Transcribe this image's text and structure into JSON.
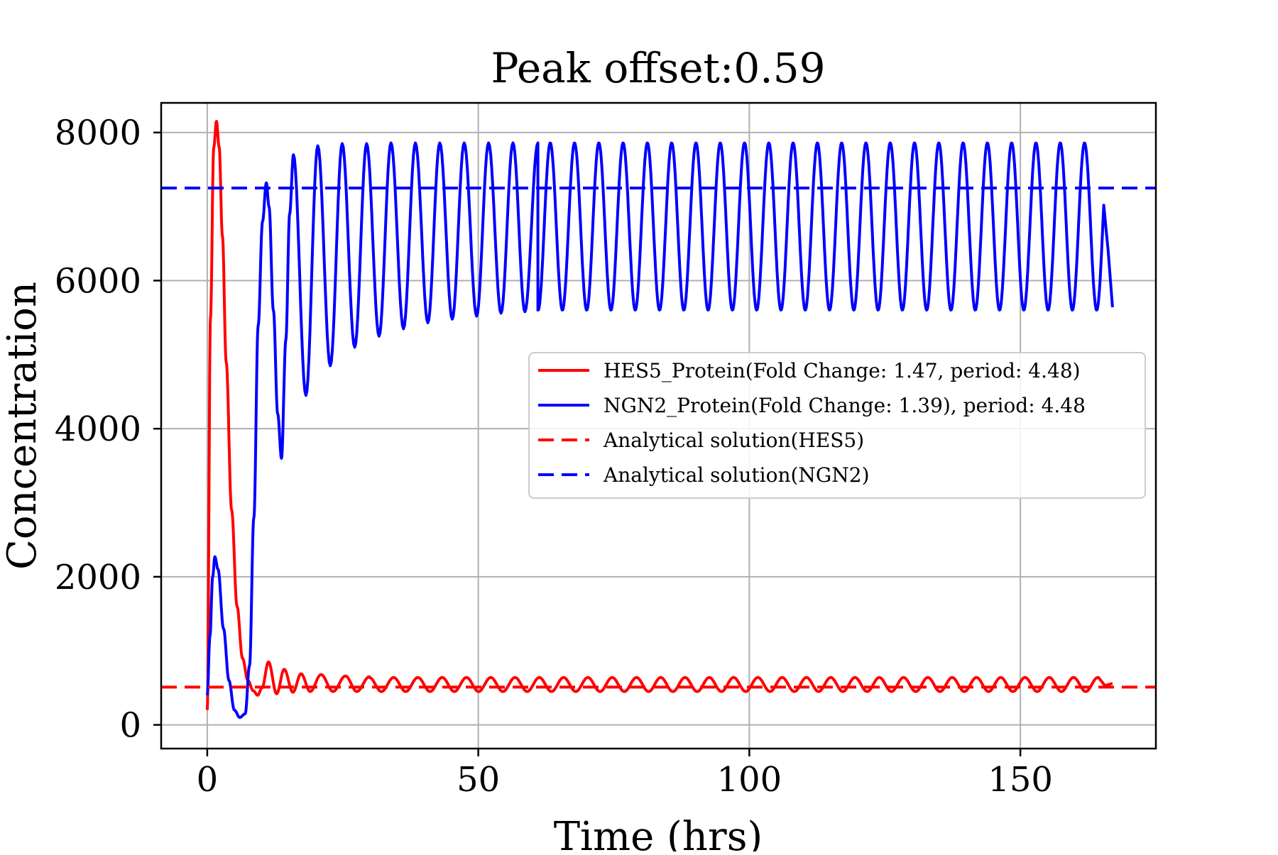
{
  "chart_data": {
    "type": "line",
    "title": "Peak offset:0.59",
    "xlabel": "Time (hrs)",
    "ylabel": "Concentration",
    "xlim": [
      -8.5,
      175
    ],
    "ylim": [
      -320,
      8400
    ],
    "xticks": [
      0,
      50,
      100,
      150
    ],
    "yticks": [
      0,
      2000,
      4000,
      6000,
      8000
    ],
    "grid": true,
    "legend_position": "center-right",
    "series": [
      {
        "name": "HES5_Protein(Fold Change: 1.47, period: 4.48)",
        "color": "#ff0000",
        "style": "solid",
        "x": [
          0,
          0.6,
          1.2,
          1.7,
          2.2,
          2.8,
          3.5,
          4.5,
          5.5,
          6.5,
          7.5,
          8.5,
          9.3,
          10.1,
          11.3,
          12.8,
          14.2,
          15.8,
          17.3,
          19.0,
          21.0,
          23.2,
          25.5,
          27.6,
          29.9,
          34.4,
          38.8,
          43.3,
          47.8,
          52.3,
          56.8,
          61.2,
          65.7,
          70.2,
          74.6,
          79.1,
          83.6,
          88.1,
          92.5,
          97.0,
          101.5,
          105.9,
          110.4,
          114.9,
          119.3,
          123.8,
          128.3,
          132.8,
          137.2,
          141.7,
          146.2,
          150.6,
          155.1,
          159.6,
          164.0,
          165.6,
          167.0
        ],
        "y": [
          200,
          5500,
          7800,
          8150,
          7800,
          6600,
          4900,
          2900,
          1600,
          900,
          600,
          460,
          400,
          500,
          850,
          420,
          750,
          440,
          690,
          450,
          680,
          450,
          660,
          450,
          650,
          640,
          640,
          635,
          630,
          630,
          630,
          630,
          630,
          630,
          630,
          630,
          630,
          630,
          630,
          630,
          630,
          630,
          630,
          630,
          630,
          630,
          630,
          630,
          630,
          630,
          630,
          630,
          630,
          630,
          630,
          530,
          560
        ]
      },
      {
        "name": "NGN2_Protein(Fold Change: 1.39), period: 4.48",
        "color": "#0000ff",
        "style": "solid",
        "x": [
          0,
          0.5,
          1.0,
          1.4,
          2.0,
          3.0,
          4.0,
          5.0,
          6.0,
          7.0,
          7.8,
          8.6,
          9.4,
          10.2,
          10.9,
          11.4,
          12.2,
          13.0,
          13.7,
          14.5,
          15.2,
          15.9,
          18.2,
          20.4,
          22.7,
          24.9,
          27.2,
          29.4,
          31.7,
          33.9,
          36.2,
          38.4,
          40.7,
          42.9,
          45.2,
          47.4,
          49.7,
          51.9,
          54.2,
          56.4,
          58.6,
          61.0,
          167.0
        ],
        "y": [
          400,
          1200,
          2000,
          2270,
          2100,
          1300,
          600,
          200,
          100,
          150,
          800,
          2800,
          5400,
          6800,
          7320,
          7000,
          5600,
          4200,
          3600,
          5200,
          6900,
          7700,
          4450,
          7820,
          4850,
          7850,
          5100,
          7850,
          5250,
          7860,
          5350,
          7860,
          5430,
          7860,
          5480,
          7860,
          5520,
          7860,
          5560,
          7860,
          5580,
          7860,
          5640
        ]
      },
      {
        "name": "Analytical solution(HES5)",
        "color": "#ff0000",
        "style": "dashed",
        "x": [
          -8.5,
          175
        ],
        "y": [
          510,
          510
        ]
      },
      {
        "name": "Analytical solution(NGN2)",
        "color": "#0000ff",
        "style": "dashed",
        "x": [
          -8.5,
          175
        ],
        "y": [
          7250,
          7250
        ]
      }
    ],
    "oscillation_note_hidden": ""
  }
}
